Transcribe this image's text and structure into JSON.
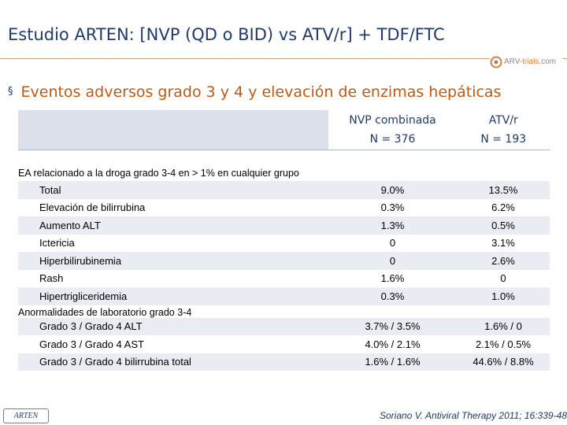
{
  "title": "Estudio ARTEN: [NVP (QD o BID) vs ATV/r] + TDF/FTC",
  "logo": {
    "brand_main": "ARV-",
    "brand_accent": "trials",
    "brand_tail": ".com",
    "icon": "arv-trials-logo-icon"
  },
  "subtitle": {
    "bullet": "§",
    "text": "Eventos adversos grado 3 y 4 y  elevación de enzimas hepáticas"
  },
  "table": {
    "columns": [
      {
        "name": "NVP combinada",
        "n": "N = 376"
      },
      {
        "name": "ATV/r",
        "n": "N = 193"
      }
    ],
    "section1": "EA relacionado a la droga grado 3-4 en > 1%  en cualquier grupo",
    "rows1": [
      {
        "label": "Total",
        "nvp": "9.0%",
        "atv": "13.5%"
      },
      {
        "label": "Elevación de bilirrubina",
        "nvp": "0.3%",
        "atv": "6.2%"
      },
      {
        "label": "Aumento ALT",
        "nvp": "1.3%",
        "atv": "0.5%"
      },
      {
        "label": "Ictericia",
        "nvp": "0",
        "atv": "3.1%"
      },
      {
        "label": "Hiperbilirubinemia",
        "nvp": "0",
        "atv": "2.6%"
      },
      {
        "label": "Rash",
        "nvp": "1.6%",
        "atv": "0"
      },
      {
        "label": "Hipertrigliceridemia",
        "nvp": "0.3%",
        "atv": "1.0%"
      }
    ],
    "section2": "Anormalidades de laboratorio grado 3-4",
    "rows2": [
      {
        "label": "Grado 3 / Grado 4 ALT",
        "nvp": "3.7%  / 3.5%",
        "atv": "1.6%  / 0"
      },
      {
        "label": "Grado 3 / Grado 4 AST",
        "nvp": "4.0%  / 2.1%",
        "atv": "2.1%  / 0.5%"
      },
      {
        "label": "Grado 3 / Grado 4 bilirrubina total",
        "nvp": "1.6%  / 1.6%",
        "atv": "44.6%  / 8.8%"
      }
    ]
  },
  "footer": {
    "badge": "ARTEN",
    "citation": "Soriano V. Antiviral Therapy 2011; 16:339-48"
  }
}
